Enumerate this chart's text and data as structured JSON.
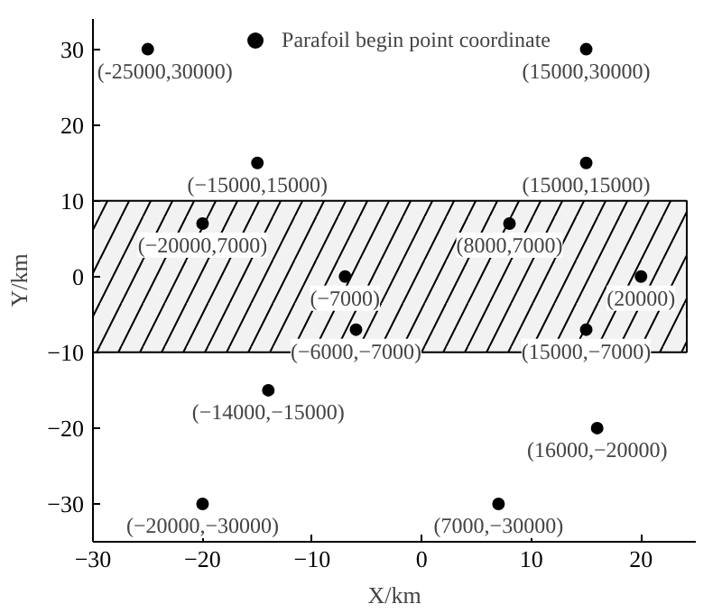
{
  "chart_data": {
    "type": "scatter",
    "xlabel": "X/km",
    "ylabel": "Y/km",
    "x": [
      -25,
      15,
      -15,
      15,
      -20,
      8,
      -7,
      20,
      -6,
      15,
      -14,
      16,
      -20,
      7
    ],
    "series": [
      {
        "name": "Parafoil begin point coordinate",
        "color": "#000000",
        "values": [
          30,
          30,
          15,
          15,
          7,
          7,
          0,
          0,
          -7,
          -7,
          -15,
          -20,
          -30,
          -30
        ]
      }
    ],
    "xlim": [
      -30,
      25
    ],
    "ylim": [
      -35,
      34
    ],
    "xticks": [
      -30,
      -20,
      -10,
      0,
      10,
      20
    ],
    "yticks": [
      -30,
      -20,
      -10,
      0,
      10,
      20,
      30
    ],
    "bands": [
      {
        "axis": "y",
        "from": -10,
        "to": 10,
        "label": null,
        "color": "#000000"
      }
    ],
    "annotations": [
      {
        "text": "(-25000,30000)",
        "x": -25,
        "y": 30
      },
      {
        "text": "(15000,30000)",
        "x": 15,
        "y": 30
      },
      {
        "text": "(−15000,15000)",
        "x": -15,
        "y": 15
      },
      {
        "text": "(15000,15000)",
        "x": 15,
        "y": 15
      },
      {
        "text": "(−20000,7000)",
        "x": -20,
        "y": 7
      },
      {
        "text": "(8000,7000)",
        "x": 8,
        "y": 7
      },
      {
        "text": "(−7000)",
        "x": -7,
        "y": 0
      },
      {
        "text": "(20000)",
        "x": 20,
        "y": 0
      },
      {
        "text": "(−6000,−7000)",
        "x": -6,
        "y": -7
      },
      {
        "text": "(15000,−7000)",
        "x": 15,
        "y": -7
      },
      {
        "text": "(−14000,−15000)",
        "x": -14,
        "y": -15
      },
      {
        "text": "(16000,−20000)",
        "x": 16,
        "y": -20
      },
      {
        "text": "(−20000,−30000)",
        "x": -20,
        "y": -30
      },
      {
        "text": "(7000,−30000)",
        "x": 7,
        "y": -30
      }
    ],
    "marker": "circle",
    "grid": false,
    "legend": "top"
  }
}
